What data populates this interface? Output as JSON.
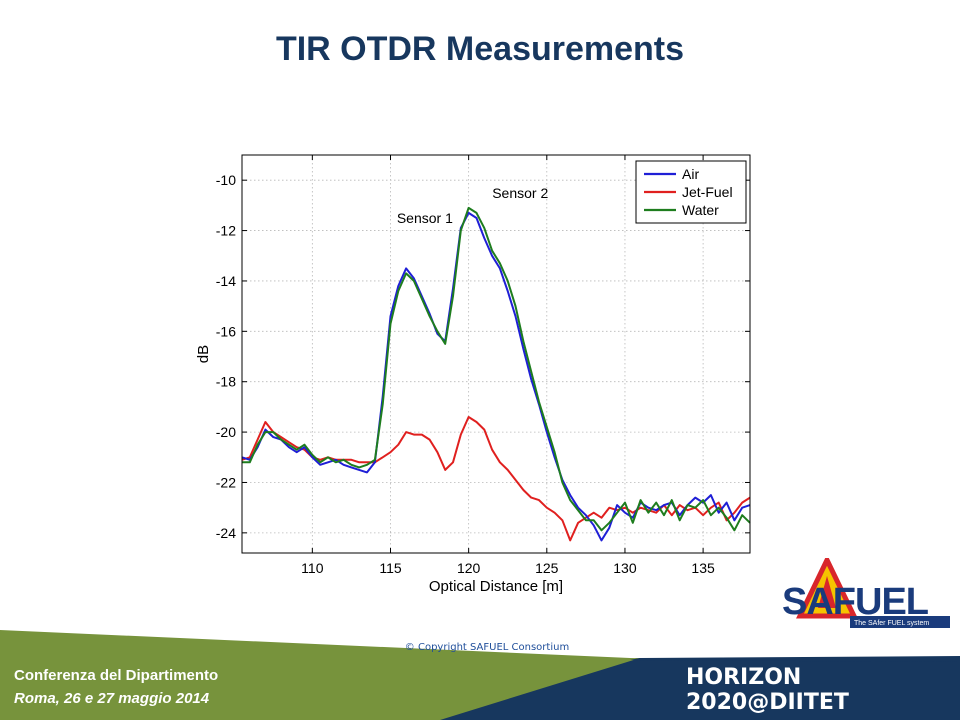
{
  "title": "TIR OTDR Measurements",
  "copyright": "© Copyright SAFUEL Consortium",
  "footer": {
    "line1": "Conferenza del Dipartimento",
    "line2": "Roma, 26 e 27 maggio 2014",
    "horizon": "HORIZON 2020@DIITET"
  },
  "logo": {
    "text": "SAFUEL",
    "tagline": "The SAfer FUEL system"
  },
  "colors": {
    "title": "#17375e",
    "air": "#1f1fd6",
    "jet_fuel": "#e0201f",
    "water": "#1e7d1e",
    "footer_green": "#77933c",
    "footer_navy": "#17375e"
  },
  "chart_data": {
    "type": "line",
    "xlabel": "Optical Distance [m]",
    "ylabel": "dB",
    "xlim": [
      105.5,
      138
    ],
    "ylim": [
      -24.8,
      -9
    ],
    "xticks": [
      110,
      115,
      120,
      125,
      130,
      135
    ],
    "yticks": [
      -10,
      -12,
      -14,
      -16,
      -18,
      -20,
      -22,
      -24
    ],
    "grid": true,
    "legend": "top-right",
    "annotations": [
      {
        "text": "Sensor 1",
        "x": 117.2,
        "y": -11.7
      },
      {
        "text": "Sensor 2",
        "x": 123.3,
        "y": -10.7
      }
    ],
    "series": [
      {
        "name": "Air",
        "x": [
          105.5,
          106,
          106.5,
          107,
          107.5,
          108,
          108.5,
          109,
          109.5,
          110,
          110.5,
          111,
          111.5,
          112,
          112.5,
          113,
          113.5,
          114,
          114.5,
          115,
          115.5,
          116,
          116.5,
          117,
          117.5,
          118,
          118.5,
          119,
          119.5,
          120,
          120.5,
          121,
          121.5,
          122,
          122.5,
          123,
          123.5,
          124,
          124.5,
          125,
          125.5,
          126,
          126.5,
          127,
          127.5,
          128,
          128.5,
          129,
          129.5,
          130,
          130.5,
          131,
          131.5,
          132,
          132.5,
          133,
          133.5,
          134,
          134.5,
          135,
          135.5,
          136,
          136.5,
          137,
          137.5,
          138
        ],
        "y": [
          -21.0,
          -21.1,
          -20.6,
          -19.9,
          -20.2,
          -20.3,
          -20.6,
          -20.8,
          -20.6,
          -21.0,
          -21.3,
          -21.2,
          -21.1,
          -21.3,
          -21.4,
          -21.5,
          -21.6,
          -21.2,
          -18.6,
          -15.4,
          -14.2,
          -13.5,
          -13.9,
          -14.6,
          -15.3,
          -16.1,
          -16.4,
          -14.3,
          -11.9,
          -11.3,
          -11.5,
          -12.3,
          -13.0,
          -13.5,
          -14.4,
          -15.4,
          -16.7,
          -17.9,
          -18.9,
          -20.0,
          -21.0,
          -21.9,
          -22.5,
          -23.0,
          -23.3,
          -23.7,
          -24.3,
          -23.8,
          -22.9,
          -23.2,
          -23.4,
          -22.8,
          -23.0,
          -23.1,
          -22.9,
          -22.8,
          -23.3,
          -22.9,
          -22.6,
          -22.8,
          -22.5,
          -23.2,
          -22.8,
          -23.5,
          -23.0,
          -22.9
        ]
      },
      {
        "name": "Jet-Fuel",
        "x": [
          105.5,
          106,
          106.5,
          107,
          107.5,
          108,
          108.5,
          109,
          109.5,
          110,
          110.5,
          111,
          111.5,
          112,
          112.5,
          113,
          113.5,
          114,
          114.5,
          115,
          115.5,
          116,
          116.5,
          117,
          117.5,
          118,
          118.5,
          119,
          119.5,
          120,
          120.5,
          121,
          121.5,
          122,
          122.5,
          123,
          123.5,
          124,
          124.5,
          125,
          125.5,
          126,
          126.5,
          127,
          127.5,
          128,
          128.5,
          129,
          129.5,
          130,
          130.5,
          131,
          131.5,
          132,
          132.5,
          133,
          133.5,
          134,
          134.5,
          135,
          135.5,
          136,
          136.5,
          137,
          137.5,
          138
        ],
        "y": [
          -21.1,
          -21.0,
          -20.3,
          -19.6,
          -20.0,
          -20.2,
          -20.4,
          -20.6,
          -20.7,
          -21.0,
          -21.1,
          -21.0,
          -21.1,
          -21.1,
          -21.1,
          -21.2,
          -21.2,
          -21.2,
          -21.0,
          -20.8,
          -20.5,
          -20.0,
          -20.1,
          -20.1,
          -20.3,
          -20.8,
          -21.5,
          -21.2,
          -20.1,
          -19.4,
          -19.6,
          -19.9,
          -20.7,
          -21.2,
          -21.5,
          -21.9,
          -22.3,
          -22.6,
          -22.7,
          -23.0,
          -23.2,
          -23.5,
          -24.3,
          -23.6,
          -23.4,
          -23.2,
          -23.4,
          -23.0,
          -23.1,
          -23.0,
          -23.2,
          -23.0,
          -23.1,
          -23.2,
          -22.9,
          -23.3,
          -22.9,
          -23.1,
          -23.0,
          -23.3,
          -23.0,
          -22.8,
          -23.5,
          -23.2,
          -22.8,
          -22.6
        ]
      },
      {
        "name": "Water",
        "x": [
          105.5,
          106,
          106.5,
          107,
          107.5,
          108,
          108.5,
          109,
          109.5,
          110,
          110.5,
          111,
          111.5,
          112,
          112.5,
          113,
          113.5,
          114,
          114.5,
          115,
          115.5,
          116,
          116.5,
          117,
          117.5,
          118,
          118.5,
          119,
          119.5,
          120,
          120.5,
          121,
          121.5,
          122,
          122.5,
          123,
          123.5,
          124,
          124.5,
          125,
          125.5,
          126,
          126.5,
          127,
          127.5,
          128,
          128.5,
          129,
          129.5,
          130,
          130.5,
          131,
          131.5,
          132,
          132.5,
          133,
          133.5,
          134,
          134.5,
          135,
          135.5,
          136,
          136.5,
          137,
          137.5,
          138
        ],
        "y": [
          -21.2,
          -21.2,
          -20.5,
          -20.0,
          -20.0,
          -20.3,
          -20.5,
          -20.7,
          -20.5,
          -20.9,
          -21.2,
          -21.0,
          -21.2,
          -21.1,
          -21.3,
          -21.4,
          -21.3,
          -21.1,
          -18.9,
          -15.7,
          -14.4,
          -13.7,
          -14.0,
          -14.7,
          -15.4,
          -16.0,
          -16.5,
          -14.6,
          -12.0,
          -11.1,
          -11.3,
          -11.9,
          -12.8,
          -13.3,
          -14.0,
          -15.0,
          -16.4,
          -17.6,
          -18.8,
          -19.8,
          -20.8,
          -22.0,
          -22.7,
          -23.1,
          -23.5,
          -23.5,
          -23.9,
          -23.6,
          -23.2,
          -22.8,
          -23.6,
          -22.7,
          -23.2,
          -22.8,
          -23.3,
          -22.7,
          -23.5,
          -22.9,
          -23.0,
          -22.7,
          -23.3,
          -23.0,
          -23.4,
          -23.9,
          -23.3,
          -23.6
        ]
      }
    ]
  }
}
